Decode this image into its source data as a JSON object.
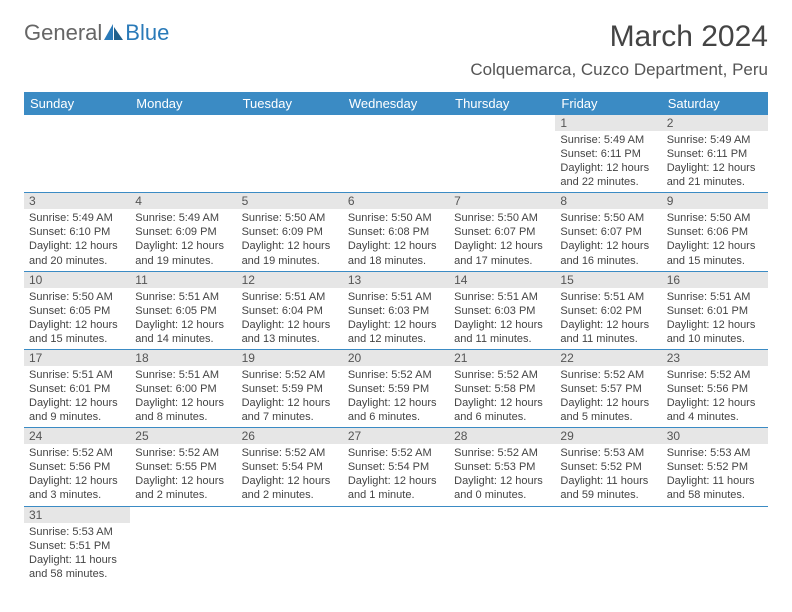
{
  "brand": {
    "part1": "General",
    "part2": "Blue"
  },
  "title": "March 2024",
  "location": "Colquemarca, Cuzco Department, Peru",
  "colors": {
    "header_bg": "#3b8bc4",
    "header_text": "#ffffff",
    "daynum_bg": "#e6e6e6",
    "row_border": "#3b8bc4",
    "logo_blue": "#2a7ab8"
  },
  "weekdays": [
    "Sunday",
    "Monday",
    "Tuesday",
    "Wednesday",
    "Thursday",
    "Friday",
    "Saturday"
  ],
  "weeks": [
    [
      {
        "empty": true
      },
      {
        "empty": true
      },
      {
        "empty": true
      },
      {
        "empty": true
      },
      {
        "empty": true
      },
      {
        "day": "1",
        "sunrise": "Sunrise: 5:49 AM",
        "sunset": "Sunset: 6:11 PM",
        "daylight": "Daylight: 12 hours and 22 minutes."
      },
      {
        "day": "2",
        "sunrise": "Sunrise: 5:49 AM",
        "sunset": "Sunset: 6:11 PM",
        "daylight": "Daylight: 12 hours and 21 minutes."
      }
    ],
    [
      {
        "day": "3",
        "sunrise": "Sunrise: 5:49 AM",
        "sunset": "Sunset: 6:10 PM",
        "daylight": "Daylight: 12 hours and 20 minutes."
      },
      {
        "day": "4",
        "sunrise": "Sunrise: 5:49 AM",
        "sunset": "Sunset: 6:09 PM",
        "daylight": "Daylight: 12 hours and 19 minutes."
      },
      {
        "day": "5",
        "sunrise": "Sunrise: 5:50 AM",
        "sunset": "Sunset: 6:09 PM",
        "daylight": "Daylight: 12 hours and 19 minutes."
      },
      {
        "day": "6",
        "sunrise": "Sunrise: 5:50 AM",
        "sunset": "Sunset: 6:08 PM",
        "daylight": "Daylight: 12 hours and 18 minutes."
      },
      {
        "day": "7",
        "sunrise": "Sunrise: 5:50 AM",
        "sunset": "Sunset: 6:07 PM",
        "daylight": "Daylight: 12 hours and 17 minutes."
      },
      {
        "day": "8",
        "sunrise": "Sunrise: 5:50 AM",
        "sunset": "Sunset: 6:07 PM",
        "daylight": "Daylight: 12 hours and 16 minutes."
      },
      {
        "day": "9",
        "sunrise": "Sunrise: 5:50 AM",
        "sunset": "Sunset: 6:06 PM",
        "daylight": "Daylight: 12 hours and 15 minutes."
      }
    ],
    [
      {
        "day": "10",
        "sunrise": "Sunrise: 5:50 AM",
        "sunset": "Sunset: 6:05 PM",
        "daylight": "Daylight: 12 hours and 15 minutes."
      },
      {
        "day": "11",
        "sunrise": "Sunrise: 5:51 AM",
        "sunset": "Sunset: 6:05 PM",
        "daylight": "Daylight: 12 hours and 14 minutes."
      },
      {
        "day": "12",
        "sunrise": "Sunrise: 5:51 AM",
        "sunset": "Sunset: 6:04 PM",
        "daylight": "Daylight: 12 hours and 13 minutes."
      },
      {
        "day": "13",
        "sunrise": "Sunrise: 5:51 AM",
        "sunset": "Sunset: 6:03 PM",
        "daylight": "Daylight: 12 hours and 12 minutes."
      },
      {
        "day": "14",
        "sunrise": "Sunrise: 5:51 AM",
        "sunset": "Sunset: 6:03 PM",
        "daylight": "Daylight: 12 hours and 11 minutes."
      },
      {
        "day": "15",
        "sunrise": "Sunrise: 5:51 AM",
        "sunset": "Sunset: 6:02 PM",
        "daylight": "Daylight: 12 hours and 11 minutes."
      },
      {
        "day": "16",
        "sunrise": "Sunrise: 5:51 AM",
        "sunset": "Sunset: 6:01 PM",
        "daylight": "Daylight: 12 hours and 10 minutes."
      }
    ],
    [
      {
        "day": "17",
        "sunrise": "Sunrise: 5:51 AM",
        "sunset": "Sunset: 6:01 PM",
        "daylight": "Daylight: 12 hours and 9 minutes."
      },
      {
        "day": "18",
        "sunrise": "Sunrise: 5:51 AM",
        "sunset": "Sunset: 6:00 PM",
        "daylight": "Daylight: 12 hours and 8 minutes."
      },
      {
        "day": "19",
        "sunrise": "Sunrise: 5:52 AM",
        "sunset": "Sunset: 5:59 PM",
        "daylight": "Daylight: 12 hours and 7 minutes."
      },
      {
        "day": "20",
        "sunrise": "Sunrise: 5:52 AM",
        "sunset": "Sunset: 5:59 PM",
        "daylight": "Daylight: 12 hours and 6 minutes."
      },
      {
        "day": "21",
        "sunrise": "Sunrise: 5:52 AM",
        "sunset": "Sunset: 5:58 PM",
        "daylight": "Daylight: 12 hours and 6 minutes."
      },
      {
        "day": "22",
        "sunrise": "Sunrise: 5:52 AM",
        "sunset": "Sunset: 5:57 PM",
        "daylight": "Daylight: 12 hours and 5 minutes."
      },
      {
        "day": "23",
        "sunrise": "Sunrise: 5:52 AM",
        "sunset": "Sunset: 5:56 PM",
        "daylight": "Daylight: 12 hours and 4 minutes."
      }
    ],
    [
      {
        "day": "24",
        "sunrise": "Sunrise: 5:52 AM",
        "sunset": "Sunset: 5:56 PM",
        "daylight": "Daylight: 12 hours and 3 minutes."
      },
      {
        "day": "25",
        "sunrise": "Sunrise: 5:52 AM",
        "sunset": "Sunset: 5:55 PM",
        "daylight": "Daylight: 12 hours and 2 minutes."
      },
      {
        "day": "26",
        "sunrise": "Sunrise: 5:52 AM",
        "sunset": "Sunset: 5:54 PM",
        "daylight": "Daylight: 12 hours and 2 minutes."
      },
      {
        "day": "27",
        "sunrise": "Sunrise: 5:52 AM",
        "sunset": "Sunset: 5:54 PM",
        "daylight": "Daylight: 12 hours and 1 minute."
      },
      {
        "day": "28",
        "sunrise": "Sunrise: 5:52 AM",
        "sunset": "Sunset: 5:53 PM",
        "daylight": "Daylight: 12 hours and 0 minutes."
      },
      {
        "day": "29",
        "sunrise": "Sunrise: 5:53 AM",
        "sunset": "Sunset: 5:52 PM",
        "daylight": "Daylight: 11 hours and 59 minutes."
      },
      {
        "day": "30",
        "sunrise": "Sunrise: 5:53 AM",
        "sunset": "Sunset: 5:52 PM",
        "daylight": "Daylight: 11 hours and 58 minutes."
      }
    ],
    [
      {
        "day": "31",
        "sunrise": "Sunrise: 5:53 AM",
        "sunset": "Sunset: 5:51 PM",
        "daylight": "Daylight: 11 hours and 58 minutes."
      },
      {
        "empty": true
      },
      {
        "empty": true
      },
      {
        "empty": true
      },
      {
        "empty": true
      },
      {
        "empty": true
      },
      {
        "empty": true
      }
    ]
  ]
}
